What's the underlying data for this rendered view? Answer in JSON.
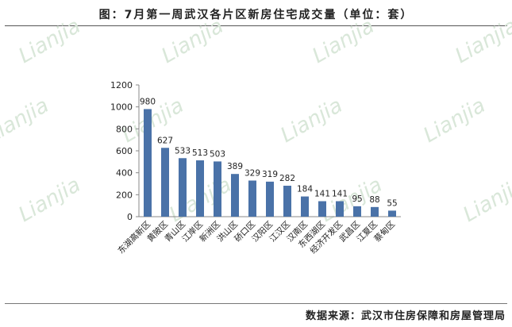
{
  "title": "图：7月第一周武汉各片区新房住宅成交量（单位：套）",
  "source": "数据来源：武汉市住房保障和房屋管理局",
  "watermark": "Lianjia",
  "colors": {
    "bar": "#4a72a8",
    "axis": "#888888",
    "text": "#222222",
    "watermark": "#d9e7d9"
  },
  "chart_data": {
    "type": "bar",
    "title": "图：7月第一周武汉各片区新房住宅成交量（单位：套）",
    "xlabel": "",
    "ylabel": "",
    "ylim": [
      0,
      1200
    ],
    "yticks": [
      0,
      200,
      400,
      600,
      800,
      1000,
      1200
    ],
    "grid": false,
    "legend": "none",
    "categories": [
      "东湖高新区",
      "黄陂区",
      "青山区",
      "江岸区",
      "新洲区",
      "洪山区",
      "硚口区",
      "汉阳区",
      "江汉区",
      "汉南区",
      "东西湖区",
      "经济开发区",
      "武昌区",
      "江夏区",
      "蔡甸区"
    ],
    "values": [
      980,
      627,
      533,
      513,
      503,
      389,
      329,
      319,
      282,
      184,
      141,
      141,
      95,
      88,
      55
    ]
  }
}
